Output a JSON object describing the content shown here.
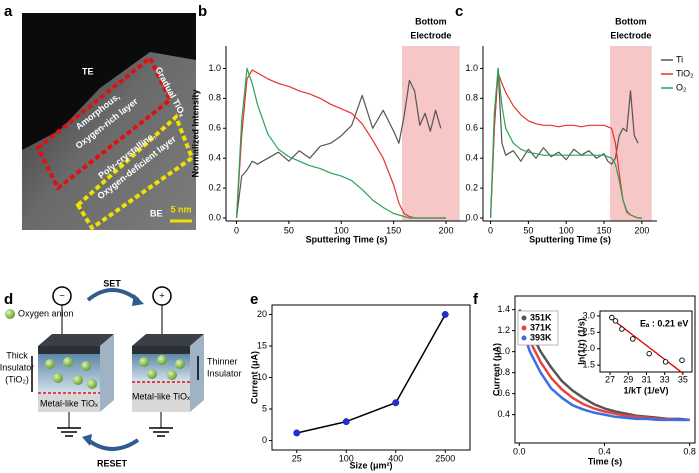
{
  "panel_labels": [
    "a",
    "b",
    "c",
    "d",
    "e",
    "f"
  ],
  "image_a": {
    "te": "TE",
    "be": "BE",
    "gradual": "Gradual TiOₓ",
    "amorphous": [
      "Amorphous,",
      "Oxygen-rich layer"
    ],
    "poly": [
      "Poly-crystalline,",
      "Oxygen-deficient layer"
    ],
    "scale_bar": "5 nm"
  },
  "diagram_d": {
    "anion": "Oxygen anion",
    "set": "SET",
    "reset": "RESET",
    "minus": "−",
    "plus": "+",
    "thick": [
      "Thick",
      "Insulator",
      "(TiO₂)"
    ],
    "thinner": [
      "Thinner",
      "Insulator"
    ],
    "metal_like": [
      "Metal-like TiOₓ",
      "Metal-like TiOₓ"
    ]
  },
  "chart_data": [
    {
      "type": "line",
      "annotation": [
        "Bottom",
        "Electrode"
      ],
      "shade_x": [
        158,
        213
      ],
      "shade_color": "#f7c6c7",
      "x_label": "Sputtering Time (s)",
      "y_label": "Normalized Intensity",
      "xlim": [
        -10,
        220
      ],
      "ylim": [
        -0.02,
        1.15
      ],
      "xticks": [
        0,
        50,
        100,
        150,
        200
      ],
      "yticks": [
        {
          "value": 0,
          "label": "0.0"
        },
        0.2,
        0.4,
        0.6,
        0.8,
        {
          "value": 1,
          "label": "1.0"
        }
      ],
      "x": [
        0,
        5,
        10,
        15,
        20,
        30,
        40,
        50,
        60,
        70,
        80,
        90,
        100,
        110,
        120,
        130,
        140,
        150,
        155,
        160,
        165,
        170,
        175,
        180,
        185,
        190,
        195,
        200
      ],
      "series": [
        {
          "color": "#555555",
          "values": [
            0,
            0.28,
            0.32,
            0.38,
            0.36,
            0.4,
            0.44,
            0.38,
            0.45,
            0.4,
            0.48,
            0.5,
            0.55,
            0.62,
            0.82,
            0.6,
            0.72,
            0.58,
            0.5,
            0.68,
            0.92,
            0.85,
            0.62,
            0.7,
            0.58,
            0.72,
            0.6,
            null
          ]
        },
        {
          "color": "#e8322a",
          "values": [
            0,
            0.55,
            0.93,
            0.99,
            0.97,
            0.93,
            0.9,
            0.88,
            0.85,
            0.83,
            0.8,
            0.76,
            0.73,
            0.7,
            0.63,
            0.52,
            0.4,
            0.22,
            0.1,
            0.03,
            0.01,
            0,
            0,
            0,
            0,
            0,
            0,
            0
          ]
        },
        {
          "color": "#2aa35a",
          "values": [
            0,
            0.65,
            1.0,
            0.9,
            0.76,
            0.56,
            0.46,
            0.41,
            0.38,
            0.35,
            0.33,
            0.3,
            0.28,
            0.25,
            0.19,
            0.12,
            0.07,
            0.03,
            0.02,
            0.01,
            0,
            0,
            0,
            0,
            0,
            0,
            0,
            0
          ]
        }
      ]
    },
    {
      "type": "line",
      "annotation": [
        "Bottom",
        "Electrode"
      ],
      "shade_x": [
        158,
        213
      ],
      "shade_color": "#f7c6c7",
      "legend": "right",
      "x_label": "Sputtering Time (s)",
      "xlim": [
        -10,
        220
      ],
      "ylim": [
        -0.02,
        1.15
      ],
      "xticks": [
        0,
        50,
        100,
        150,
        200
      ],
      "yticks": [
        {
          "value": 0,
          "label": "0.0"
        },
        0.2,
        0.4,
        0.6,
        0.8,
        {
          "value": 1,
          "label": "1.0"
        }
      ],
      "x": [
        0,
        5,
        10,
        15,
        20,
        30,
        40,
        50,
        60,
        70,
        80,
        90,
        100,
        110,
        120,
        130,
        140,
        150,
        155,
        160,
        165,
        170,
        175,
        180,
        185,
        190,
        195,
        200
      ],
      "series": [
        {
          "name": "Ti",
          "color": "#555555",
          "values": [
            0,
            0.6,
            1.0,
            0.5,
            0.42,
            0.45,
            0.38,
            0.46,
            0.4,
            0.47,
            0.41,
            0.44,
            0.39,
            0.46,
            0.42,
            0.45,
            0.4,
            0.43,
            0.38,
            0.36,
            0.4,
            0.55,
            0.6,
            0.58,
            0.85,
            0.55,
            0.5,
            null
          ]
        },
        {
          "name": "TiO₂",
          "color": "#e8322a",
          "values": [
            0,
            0.6,
            0.97,
            0.9,
            0.84,
            0.75,
            0.69,
            0.65,
            0.63,
            0.62,
            0.62,
            0.61,
            0.62,
            0.62,
            0.61,
            0.62,
            0.62,
            0.62,
            0.61,
            0.6,
            0.5,
            0.3,
            0.12,
            0.04,
            0.02,
            0.01,
            0,
            0
          ]
        },
        {
          "name": "O₂",
          "color": "#2aa35a",
          "values": [
            0,
            0.7,
            1.0,
            0.75,
            0.6,
            0.5,
            0.46,
            0.44,
            0.43,
            0.42,
            0.42,
            0.42,
            0.42,
            0.42,
            0.42,
            0.42,
            0.42,
            0.42,
            0.41,
            0.4,
            0.36,
            0.25,
            0.12,
            0.05,
            0.02,
            0.01,
            0,
            0
          ]
        }
      ]
    },
    {
      "type": "line",
      "categories": [
        "25",
        "100",
        "400",
        "2500"
      ],
      "values": [
        1.2,
        3,
        6,
        20
      ],
      "color": "#000000",
      "marker_color": "#1f2fe0",
      "x_label": "Size (μm²)",
      "y_label": "Current (μA)",
      "ylim": [
        -1.5,
        21.5
      ],
      "yticks": [
        0,
        5,
        10,
        15,
        20
      ]
    },
    {
      "type": "line",
      "legend": "upper left",
      "x_label": "Time (s)",
      "y_label": "Current (μA)",
      "xlim": [
        -0.02,
        0.825
      ],
      "ylim": [
        0.13,
        1.53
      ],
      "xticks": [
        {
          "value": 0,
          "label": "0.0"
        },
        0.4,
        0.8
      ],
      "yticks": [
        0.4,
        0.6,
        0.8,
        {
          "value": 1,
          "label": "1.0"
        },
        1.2,
        1.4
      ],
      "x": [
        0,
        0.05,
        0.1,
        0.15,
        0.2,
        0.25,
        0.3,
        0.35,
        0.4,
        0.45,
        0.5,
        0.55,
        0.6,
        0.65,
        0.7,
        0.75,
        0.8
      ],
      "series": [
        {
          "name": "351K",
          "color": "#555555",
          "values": [
            1.4,
            1.2,
            1.0,
            0.85,
            0.72,
            0.63,
            0.56,
            0.5,
            0.46,
            0.43,
            0.41,
            0.39,
            0.38,
            0.37,
            0.36,
            0.36,
            0.35
          ]
        },
        {
          "name": "371K",
          "color": "#e8453c",
          "values": [
            1.35,
            1.1,
            0.9,
            0.75,
            0.64,
            0.56,
            0.5,
            0.46,
            0.43,
            0.41,
            0.39,
            0.38,
            0.37,
            0.36,
            0.36,
            0.35,
            0.35
          ]
        },
        {
          "name": "393K",
          "color": "#3a6fe8",
          "values": [
            1.3,
            1.0,
            0.8,
            0.65,
            0.56,
            0.49,
            0.45,
            0.42,
            0.4,
            0.38,
            0.37,
            0.36,
            0.36,
            0.35,
            0.35,
            0.35,
            0.35
          ]
        }
      ]
    },
    {
      "type": "scatter",
      "x": [
        27.2,
        27.6,
        28.3,
        29.5,
        31.3,
        33.1,
        34.9
      ],
      "values": [
        2.95,
        2.85,
        2.6,
        2.3,
        1.85,
        1.6,
        1.65
      ],
      "fit_x": [
        27,
        35
      ],
      "fit_y": [
        2.95,
        1.25
      ],
      "fit_color": "#e00000",
      "annotation": "Eₐ : 0.21 eV",
      "x_label": "1/kT (1/eV)",
      "y_label": "ln(1/τ) (1/s)",
      "xlim": [
        25.9,
        36
      ],
      "ylim": [
        1.29,
        3.15
      ],
      "xticks": [
        27,
        29,
        31,
        33,
        35
      ],
      "yticks": [
        1.5,
        {
          "value": 2,
          "label": "2.0"
        },
        2.5,
        {
          "value": 3,
          "label": "3.0"
        }
      ]
    }
  ]
}
